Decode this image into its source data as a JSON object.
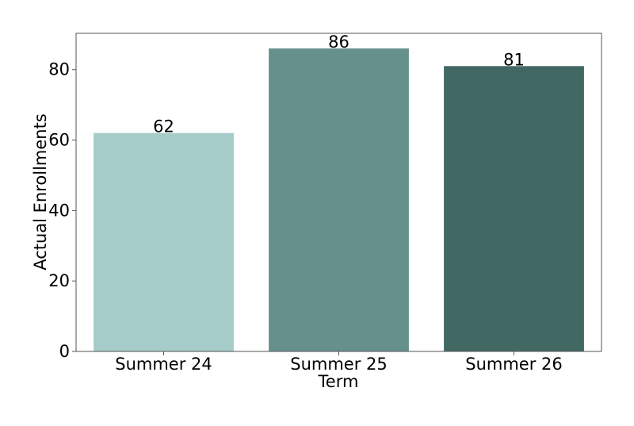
{
  "chart_data": {
    "type": "bar",
    "title": "",
    "xlabel": "Term",
    "ylabel": "Actual Enrollments",
    "categories": [
      "Summer 24",
      "Summer 25",
      "Summer 26"
    ],
    "values": [
      62,
      86,
      81
    ],
    "data_labels": [
      "62",
      "86",
      "81"
    ],
    "bar_colors": [
      "#a5ccc9",
      "#66908c",
      "#426864"
    ],
    "ylim": [
      0,
      90.3
    ],
    "yticks": [
      0,
      20,
      40,
      60,
      80
    ],
    "ytick_labels": [
      "0",
      "20",
      "40",
      "60",
      "80"
    ],
    "grid": false,
    "legend": "none"
  }
}
